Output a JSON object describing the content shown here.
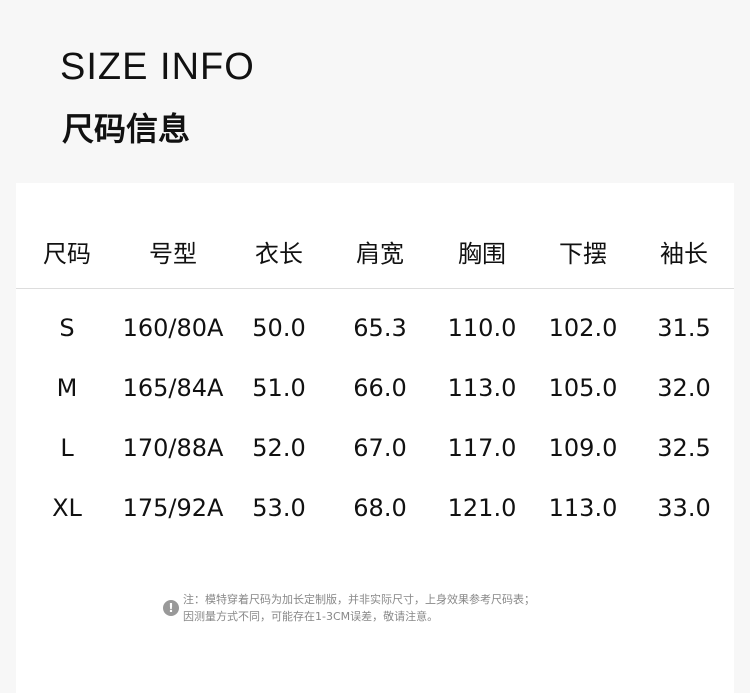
{
  "title_en": "SIZE INFO",
  "title_cn": "尺码信息",
  "table": {
    "headers": [
      "尺码",
      "号型",
      "衣长",
      "肩宽",
      "胸围",
      "下摆",
      "袖长"
    ],
    "rows": [
      [
        "S",
        "160/80A",
        "50.0",
        "65.3",
        "110.0",
        "102.0",
        "31.5"
      ],
      [
        "M",
        "165/84A",
        "51.0",
        "66.0",
        "113.0",
        "105.0",
        "32.0"
      ],
      [
        "L",
        "170/88A",
        "52.0",
        "67.0",
        "117.0",
        "109.0",
        "32.5"
      ],
      [
        "XL",
        "175/92A",
        "53.0",
        "68.0",
        "121.0",
        "113.0",
        "33.0"
      ]
    ]
  },
  "note": {
    "icon": "exclamation-icon",
    "glyph": "!",
    "line1": "注：模特穿着尺码为加长定制版，并非实际尺寸，上身效果参考尺码表；",
    "line2": "因测量方式不同，可能存在1-3CM误差，敬请注意。"
  }
}
